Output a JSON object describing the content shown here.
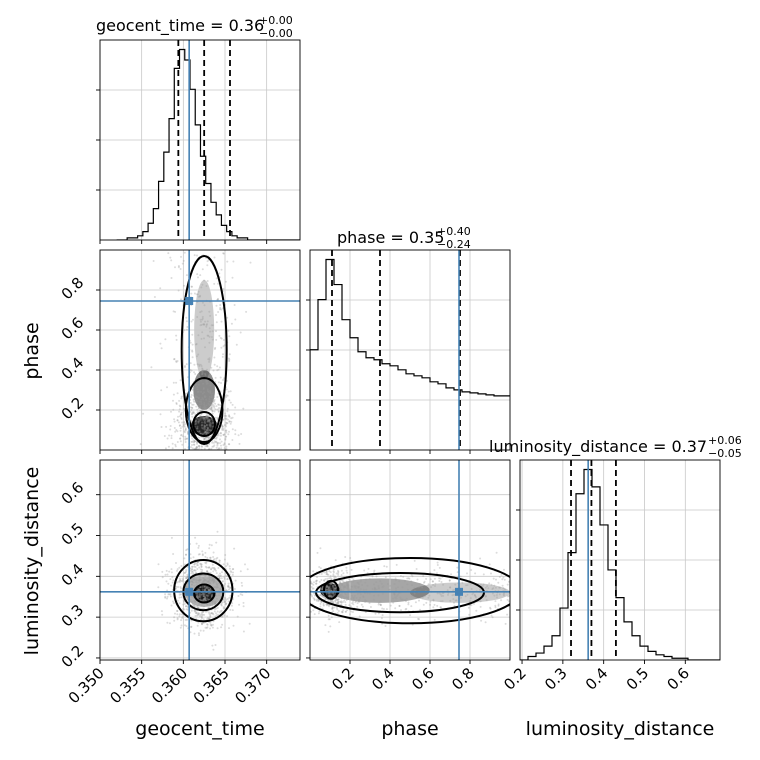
{
  "chart_data": {
    "type": "corner",
    "parameters": [
      "geocent_time",
      "phase",
      "luminosity_distance"
    ],
    "truths": {
      "geocent_time": 0.3607,
      "phase": 0.745,
      "luminosity_distance": 0.362
    },
    "titles": [
      {
        "param": "geocent_time",
        "text": "geocent_time = 0.36",
        "sup": "+0.00",
        "sub": "−0.00"
      },
      {
        "param": "phase",
        "text": "phase = 0.35",
        "sup": "+0.40",
        "sub": "−0.24"
      },
      {
        "param": "luminosity_distance",
        "text": "luminosity_distance = 0.37",
        "sup": "+0.06",
        "sub": "−0.05"
      }
    ],
    "axes": {
      "geocent_time": {
        "range": [
          0.35,
          0.374
        ],
        "ticks": [
          0.35,
          0.355,
          0.36,
          0.365,
          0.37
        ],
        "tick_labels": [
          "0.350",
          "0.355",
          "0.360",
          "0.365",
          "0.370"
        ]
      },
      "phase": {
        "range": [
          0.0,
          1.0
        ],
        "ticks": [
          0.2,
          0.4,
          0.6,
          0.8
        ],
        "tick_labels": [
          "0.2",
          "0.4",
          "0.6",
          "0.8"
        ]
      },
      "luminosity_distance": {
        "range": [
          0.195,
          0.685
        ],
        "ticks": [
          0.2,
          0.3,
          0.4,
          0.5,
          0.6
        ],
        "tick_labels": [
          "0.2",
          "0.3",
          "0.4",
          "0.5",
          "0.6"
        ]
      }
    },
    "histograms": {
      "geocent_time": {
        "quantiles": [
          0.3594,
          0.3625,
          0.3656
        ],
        "bin_edges_range": [
          0.352,
          0.374
        ],
        "counts": [
          0,
          0,
          1,
          1,
          2,
          4,
          8,
          15,
          28,
          42,
          58,
          82,
          91,
          86,
          72,
          55,
          40,
          27,
          18,
          12,
          7,
          4,
          2,
          1,
          1,
          0,
          0,
          0,
          0,
          0,
          0,
          0,
          0,
          0,
          0
        ]
      },
      "phase": {
        "quantiles": [
          0.11,
          0.35,
          0.75
        ],
        "bin_edges_range": [
          0.0,
          1.0
        ],
        "counts": [
          100,
          150,
          190,
          165,
          130,
          112,
          98,
          92,
          90,
          86,
          84,
          80,
          76,
          74,
          72,
          68,
          66,
          62,
          60,
          58,
          57,
          56,
          55,
          54,
          54
        ]
      },
      "luminosity_distance": {
        "quantiles": [
          0.32,
          0.37,
          0.43
        ],
        "bin_edges_range": [
          0.195,
          0.685
        ],
        "counts": [
          0,
          2,
          4,
          8,
          14,
          30,
          62,
          96,
          110,
          100,
          78,
          52,
          36,
          22,
          14,
          8,
          5,
          3,
          2,
          1,
          1,
          0,
          0,
          0,
          0
        ]
      }
    },
    "grid": true
  },
  "labels": {
    "x_geocent": "geocent_time",
    "x_phase": "phase",
    "x_lum": "luminosity_distance",
    "y_phase": "phase",
    "y_lum": "luminosity_distance"
  }
}
